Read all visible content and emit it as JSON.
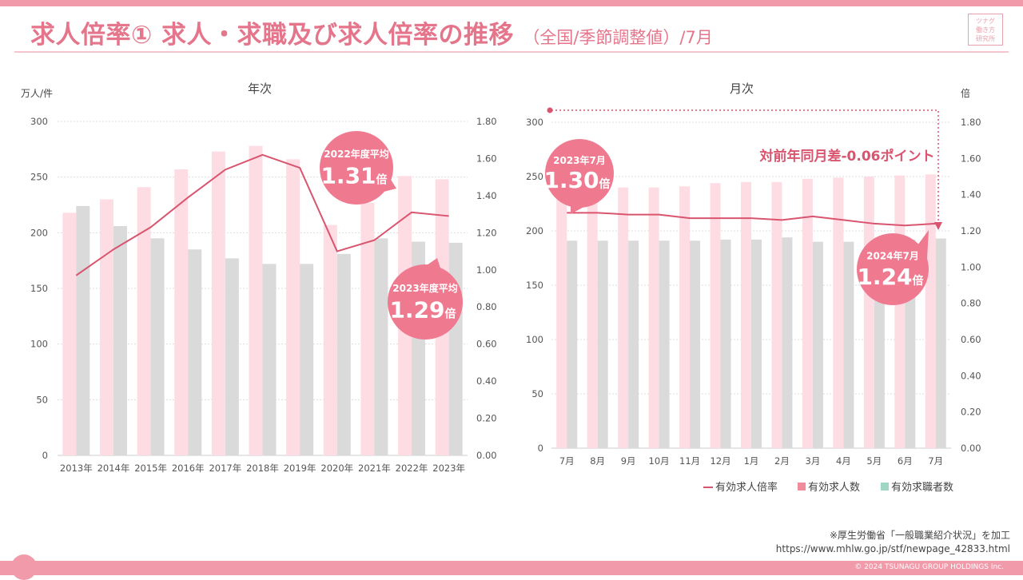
{
  "header": {
    "title": "求人倍率① 求人・求職及び求人倍率の推移",
    "subtitle": "（全国/季節調整値）/7月",
    "logo_lines": [
      "ツナグ",
      "働き方",
      "研究所"
    ]
  },
  "colors": {
    "title": "#e4758b",
    "openings_bar": "#fddde3",
    "seekers_bar": "#dadada",
    "ratio_line": "#d9546e",
    "bubble": "#ef7a90",
    "legend_openings": "#f08c9c",
    "legend_seekers": "#9fd6c4"
  },
  "chart_data": [
    {
      "type": "bar+line",
      "title": "年次",
      "ylabel_left": "万人/件",
      "ylim_left": [
        0,
        300
      ],
      "yticks_left": [
        "0",
        "50",
        "100",
        "150",
        "200",
        "250",
        "300"
      ],
      "ylim_right": [
        0,
        1.8
      ],
      "yticks_right": [
        "0.00",
        "0.20",
        "0.40",
        "0.60",
        "0.80",
        "1.00",
        "1.20",
        "1.40",
        "1.60",
        "1.80"
      ],
      "categories": [
        "2013年",
        "2014年",
        "2015年",
        "2016年",
        "2017年",
        "2018年",
        "2019年",
        "2020年",
        "2021年",
        "2022年",
        "2023年"
      ],
      "series": [
        {
          "name": "有効求人数",
          "type": "bar",
          "values": [
            218,
            230,
            241,
            257,
            273,
            278,
            266,
            207,
            227,
            251,
            248
          ]
        },
        {
          "name": "有効求職者数",
          "type": "bar",
          "values": [
            224,
            206,
            195,
            185,
            177,
            172,
            172,
            181,
            195,
            192,
            191
          ]
        },
        {
          "name": "有効求人倍率",
          "type": "line",
          "axis": "right",
          "values": [
            0.97,
            1.11,
            1.23,
            1.39,
            1.54,
            1.62,
            1.55,
            1.1,
            1.16,
            1.31,
            1.29
          ]
        }
      ],
      "callouts": [
        {
          "label": "2022年度平均",
          "value": "1.31",
          "unit": "倍"
        },
        {
          "label": "2023年度平均",
          "value": "1.29",
          "unit": "倍"
        }
      ]
    },
    {
      "type": "bar+line",
      "title": "月次",
      "ylabel_right": "倍",
      "ylim_left": [
        0,
        300
      ],
      "yticks_left": [
        "0",
        "50",
        "100",
        "150",
        "200",
        "250",
        "300"
      ],
      "ylim_right": [
        0,
        1.8
      ],
      "yticks_right": [
        "0.00",
        "0.20",
        "0.40",
        "0.60",
        "0.80",
        "1.00",
        "1.20",
        "1.40",
        "1.60",
        "1.80"
      ],
      "categories": [
        "7月",
        "8月",
        "9月",
        "10月",
        "11月",
        "12月",
        "1月",
        "2月",
        "3月",
        "4月",
        "5月",
        "6月",
        "7月"
      ],
      "series": [
        {
          "name": "有効求人数",
          "type": "bar",
          "values": [
            243,
            242,
            240,
            240,
            241,
            244,
            245,
            245,
            248,
            249,
            250,
            251,
            252
          ]
        },
        {
          "name": "有効求職者数",
          "type": "bar",
          "values": [
            191,
            191,
            191,
            191,
            191,
            192,
            192,
            194,
            190,
            190,
            193,
            192,
            193
          ]
        },
        {
          "name": "有効求人倍率",
          "type": "line",
          "axis": "right",
          "values": [
            1.3,
            1.3,
            1.29,
            1.29,
            1.27,
            1.27,
            1.27,
            1.26,
            1.28,
            1.26,
            1.24,
            1.23,
            1.24
          ]
        }
      ],
      "callouts": [
        {
          "label": "2023年7月",
          "value": "1.30",
          "unit": "倍"
        },
        {
          "label": "2024年7月",
          "value": "1.24",
          "unit": "倍"
        }
      ],
      "annotation": "対前年同月差-0.06ポイント",
      "legend": [
        "有効求人倍率",
        "有効求人数",
        "有効求職者数"
      ]
    }
  ],
  "source": {
    "note": "※厚生労働省「一般職業紹介状況」を加工",
    "url": "https://www.mhlw.go.jp/stf/newpage_42833.html"
  },
  "footer": {
    "copyright": "© 2024 TSUNAGU GROUP HOLDINGS Inc."
  }
}
